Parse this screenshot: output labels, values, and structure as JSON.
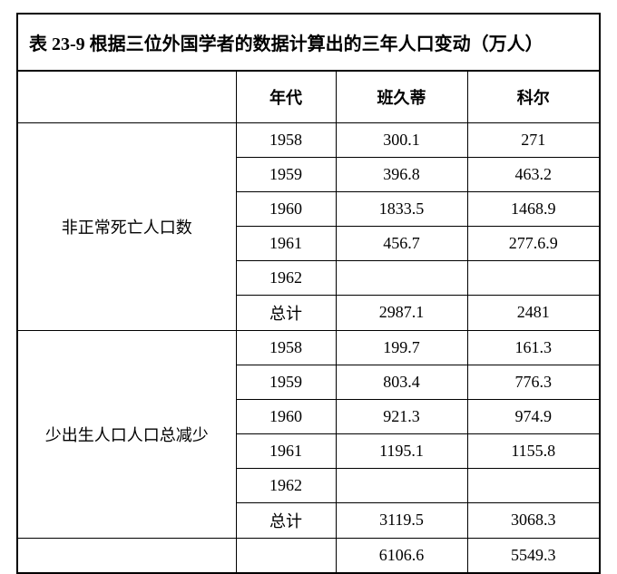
{
  "table": {
    "title": "表 23-9  根据三位外国学者的数据计算出的三年人口变动（万人）",
    "columns": {
      "category": "",
      "year": "年代",
      "source1": "班久蒂",
      "source2": "科尔"
    },
    "sections": [
      {
        "label": "非正常死亡人口数",
        "rows": [
          {
            "year": "1958",
            "source1": "300.1",
            "source2": "271"
          },
          {
            "year": "1959",
            "source1": "396.8",
            "source2": "463.2"
          },
          {
            "year": "1960",
            "source1": "1833.5",
            "source2": "1468.9"
          },
          {
            "year": "1961",
            "source1": "456.7",
            "source2": "277.6.9"
          },
          {
            "year": "1962",
            "source1": "",
            "source2": ""
          },
          {
            "year": "总计",
            "source1": "2987.1",
            "source2": "2481"
          }
        ]
      },
      {
        "label": "少出生人口人口总减少",
        "rows": [
          {
            "year": "1958",
            "source1": "199.7",
            "source2": "161.3"
          },
          {
            "year": "1959",
            "source1": "803.4",
            "source2": "776.3"
          },
          {
            "year": "1960",
            "source1": "921.3",
            "source2": "974.9"
          },
          {
            "year": "1961",
            "source1": "1195.1",
            "source2": "1155.8"
          },
          {
            "year": "1962",
            "source1": "",
            "source2": ""
          },
          {
            "year": "总计",
            "source1": "3119.5",
            "source2": "3068.3"
          }
        ]
      }
    ],
    "grand_total": {
      "label": "",
      "year": "",
      "source1": "6106.6",
      "source2": "5549.3"
    }
  },
  "style": {
    "background_color": "#ffffff",
    "border_color": "#000000",
    "title_fontsize": 20,
    "header_fontsize": 18,
    "cell_fontsize": 18,
    "font_family": "SimSun"
  }
}
